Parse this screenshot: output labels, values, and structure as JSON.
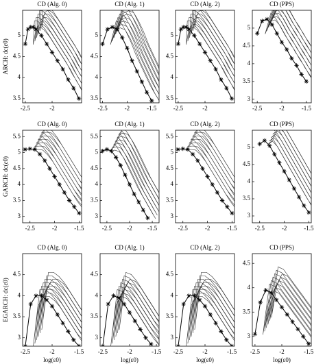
{
  "chart_data": [
    {
      "type": "line",
      "title": "CD (Alg. 0)",
      "ylabel": "ARCH: dc(ε0)",
      "xlim": [
        -2.55,
        -1.45
      ],
      "ylim": [
        3.4,
        5.6
      ],
      "xticks": [
        -2.5,
        -2
      ],
      "yticks": [
        3.5,
        4,
        4.5,
        5
      ],
      "x": [
        -2.5,
        -2.45,
        -2.4,
        -2.35,
        -2.3,
        -2.2,
        -2.1,
        -2.0,
        -1.9,
        -1.8,
        -1.7,
        -1.6,
        -1.5
      ],
      "series": [
        {
          "color": "#000000",
          "values": [
            4.8,
            5.15,
            5.2,
            5.2,
            5.15,
            5.0,
            4.8,
            4.6,
            4.4,
            4.2,
            3.95,
            3.75,
            3.5
          ]
        }
      ]
    },
    {
      "type": "line",
      "title": "CD (Alg. 1)",
      "xlim": [
        -2.55,
        -1.35
      ],
      "ylim": [
        3.4,
        5.6
      ],
      "xticks": [
        -2.5,
        -2,
        -1.5
      ],
      "yticks": [
        3.5,
        4,
        4.5,
        5
      ],
      "x": [
        -2.5,
        -2.4,
        -2.3,
        -2.2,
        -2.1,
        -2.0,
        -1.9,
        -1.8,
        -1.7,
        -1.6,
        -1.5
      ],
      "series": [
        {
          "color": "#000000",
          "values": [
            4.8,
            5.15,
            5.2,
            5.15,
            4.95,
            4.7,
            4.4,
            4.15,
            3.9,
            3.65,
            3.45
          ]
        }
      ]
    },
    {
      "type": "line",
      "title": "CD (Alg. 2)",
      "xlim": [
        -2.55,
        -1.45
      ],
      "ylim": [
        3.4,
        5.6
      ],
      "xticks": [
        -2.5,
        -2
      ],
      "yticks": [
        3.5,
        4,
        4.5,
        5
      ],
      "x": [
        -2.5,
        -2.45,
        -2.4,
        -2.35,
        -2.3,
        -2.2,
        -2.1,
        -2.0,
        -1.9,
        -1.8,
        -1.7,
        -1.6,
        -1.5
      ],
      "series": [
        {
          "color": "#000000",
          "values": [
            4.8,
            5.15,
            5.2,
            5.2,
            5.15,
            5.0,
            4.8,
            4.6,
            4.4,
            4.2,
            3.95,
            3.75,
            3.5
          ]
        }
      ]
    },
    {
      "type": "line",
      "title": "CD (PPS)",
      "xlim": [
        -2.6,
        -1.4
      ],
      "ylim": [
        2.9,
        5.5
      ],
      "xticks": [
        -2.5,
        -2,
        -1.5
      ],
      "yticks": [
        3,
        3.5,
        4,
        4.5,
        5
      ],
      "x": [
        -2.5,
        -2.4,
        -2.3,
        -2.2,
        -2.1,
        -2.0,
        -1.9,
        -1.8,
        -1.7,
        -1.6,
        -1.5
      ],
      "series": [
        {
          "color": "#000000",
          "values": [
            4.85,
            5.2,
            5.25,
            5.1,
            4.85,
            4.6,
            4.4,
            4.15,
            3.95,
            3.7,
            3.5
          ]
        }
      ]
    },
    {
      "type": "line",
      "title": "CD (Alg. 0)",
      "ylabel": "GARCH: dc(ε0)",
      "xlim": [
        -2.65,
        -1.45
      ],
      "ylim": [
        2.8,
        5.7
      ],
      "xticks": [
        -2.5,
        -2,
        -1.5
      ],
      "yticks": [
        3,
        3.5,
        4,
        4.5,
        5,
        5.5
      ],
      "x": [
        -2.6,
        -2.5,
        -2.4,
        -2.3,
        -2.2,
        -2.1,
        -2.0,
        -1.9,
        -1.8,
        -1.7,
        -1.6,
        -1.5
      ],
      "series": [
        {
          "color": "#000000",
          "values": [
            5.1,
            5.12,
            5.1,
            4.95,
            4.75,
            4.5,
            4.25,
            4.0,
            3.75,
            3.5,
            3.3,
            3.1
          ]
        }
      ]
    },
    {
      "type": "line",
      "title": "CD (Alg. 1)",
      "xlim": [
        -2.65,
        -1.35
      ],
      "ylim": [
        2.8,
        5.7
      ],
      "xticks": [
        -2.5,
        -2,
        -1.5
      ],
      "yticks": [
        3,
        3.5,
        4,
        4.5,
        5,
        5.5
      ],
      "x": [
        -2.6,
        -2.5,
        -2.4,
        -2.3,
        -2.2,
        -2.1,
        -2.0,
        -1.9,
        -1.8,
        -1.7,
        -1.6
      ],
      "series": [
        {
          "color": "#000000",
          "values": [
            5.05,
            5.1,
            5.05,
            4.85,
            4.6,
            4.3,
            4.0,
            3.7,
            3.45,
            3.2,
            2.95
          ]
        }
      ]
    },
    {
      "type": "line",
      "title": "CD (Alg. 2)",
      "xlim": [
        -2.65,
        -1.45
      ],
      "ylim": [
        2.8,
        5.7
      ],
      "xticks": [
        -2.5,
        -2,
        -1.5
      ],
      "yticks": [
        3,
        3.5,
        4,
        4.5,
        5,
        5.5
      ],
      "x": [
        -2.6,
        -2.5,
        -2.4,
        -2.3,
        -2.2,
        -2.1,
        -2.0,
        -1.9,
        -1.8,
        -1.7,
        -1.6,
        -1.5
      ],
      "series": [
        {
          "color": "#000000",
          "values": [
            5.1,
            5.12,
            5.1,
            4.95,
            4.75,
            4.5,
            4.25,
            4.0,
            3.75,
            3.5,
            3.3,
            3.1
          ]
        }
      ]
    },
    {
      "type": "line",
      "title": "CD (PPS)",
      "xlim": [
        -2.65,
        -1.45
      ],
      "ylim": [
        2.8,
        5.5
      ],
      "xticks": [
        -2.5,
        -2,
        -1.5
      ],
      "yticks": [
        3,
        3.5,
        4,
        4.5,
        5
      ],
      "x": [
        -2.5,
        -2.4,
        -2.3,
        -2.2,
        -2.1,
        -2.0,
        -1.9,
        -1.8,
        -1.7,
        -1.6,
        -1.5
      ],
      "series": [
        {
          "color": "#000000",
          "values": [
            5.1,
            5.2,
            5.05,
            4.8,
            4.55,
            4.3,
            4.05,
            3.8,
            3.55,
            3.3,
            3.1
          ]
        }
      ]
    },
    {
      "type": "line",
      "title": "CD (Alg. 0)",
      "ylabel": "EGARCH: dc(ε0)",
      "xlabel": "log(ε0)",
      "xlim": [
        -2.55,
        -1.45
      ],
      "ylim": [
        2.8,
        5.0
      ],
      "xticks": [
        -2.5,
        -2,
        -1.5
      ],
      "yticks": [
        3,
        3.5,
        4,
        4.5
      ],
      "x": [
        -2.5,
        -2.4,
        -2.3,
        -2.2,
        -2.1,
        -2.0,
        -1.9,
        -1.8,
        -1.7,
        -1.6,
        -1.5
      ],
      "series": [
        {
          "color": "#000000",
          "values": [
            2.8,
            3.8,
            4.0,
            4.0,
            3.9,
            3.75,
            3.55,
            3.35,
            3.15,
            2.95,
            2.8
          ]
        }
      ]
    },
    {
      "type": "line",
      "title": "CD (Alg. 1)",
      "xlabel": "log(ε0)",
      "xlim": [
        -2.55,
        -1.45
      ],
      "ylim": [
        2.8,
        5.0
      ],
      "xticks": [
        -2.5,
        -2,
        -1.5
      ],
      "yticks": [
        3,
        3.5,
        4,
        4.5
      ],
      "x": [
        -2.5,
        -2.4,
        -2.3,
        -2.2,
        -2.1,
        -2.0,
        -1.9,
        -1.8,
        -1.7,
        -1.6
      ],
      "series": [
        {
          "color": "#000000",
          "values": [
            2.8,
            3.8,
            4.0,
            3.95,
            3.8,
            3.6,
            3.4,
            3.2,
            3.0,
            2.85
          ]
        }
      ]
    },
    {
      "type": "line",
      "title": "CD (Alg. 2)",
      "xlabel": "log(ε0)",
      "xlim": [
        -2.55,
        -1.45
      ],
      "ylim": [
        2.8,
        5.0
      ],
      "xticks": [
        -2.5,
        -2,
        -1.5
      ],
      "yticks": [
        3,
        3.5,
        4,
        4.5
      ],
      "x": [
        -2.5,
        -2.4,
        -2.3,
        -2.2,
        -2.1,
        -2.0,
        -1.9,
        -1.8,
        -1.7,
        -1.6,
        -1.5
      ],
      "series": [
        {
          "color": "#000000",
          "values": [
            2.8,
            3.8,
            4.0,
            4.0,
            3.9,
            3.75,
            3.55,
            3.35,
            3.15,
            2.95,
            2.8
          ]
        }
      ]
    },
    {
      "type": "line",
      "title": "CD (PPS)",
      "xlabel": "log(ε0)",
      "xlim": [
        -2.55,
        -1.45
      ],
      "ylim": [
        2.8,
        4.7
      ],
      "xticks": [
        -2.5,
        -2,
        -1.5
      ],
      "yticks": [
        3,
        3.5,
        4,
        4.5
      ],
      "x": [
        -2.5,
        -2.4,
        -2.3,
        -2.2,
        -2.1,
        -2.0,
        -1.9,
        -1.8,
        -1.7,
        -1.6,
        -1.5
      ],
      "series": [
        {
          "color": "#000000",
          "values": [
            3.05,
            3.7,
            3.95,
            3.9,
            3.75,
            3.6,
            3.45,
            3.3,
            3.15,
            3.0,
            2.85
          ]
        }
      ]
    }
  ]
}
